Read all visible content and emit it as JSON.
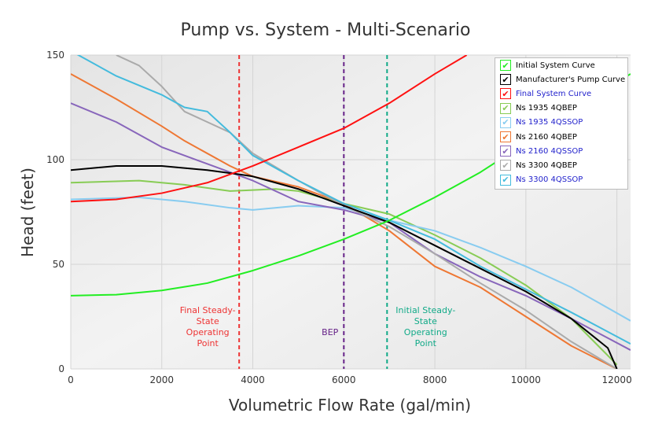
{
  "chart_data": {
    "type": "line",
    "title": "Pump vs. System - Multi-Scenario",
    "xlabel": "Volumetric Flow Rate (gal/min)",
    "ylabel": "Head (feet)",
    "xlim": [
      0,
      12300
    ],
    "ylim": [
      0,
      150
    ],
    "xticks": [
      0,
      2000,
      4000,
      6000,
      8000,
      10000,
      12000
    ],
    "yticks": [
      0,
      50,
      100,
      150
    ],
    "grid": true,
    "legend_position": "top-right",
    "series": [
      {
        "name": "Initial System Curve",
        "color": "#22ee22",
        "name_color": "#000000",
        "x": [
          0,
          1000,
          2000,
          3000,
          4000,
          5000,
          6000,
          7000,
          8000,
          9000,
          10000,
          11000,
          12000,
          12300
        ],
        "y": [
          35,
          35.5,
          37.5,
          41,
          47,
          54,
          62,
          71,
          82,
          94,
          108,
          122,
          137,
          141
        ]
      },
      {
        "name": "Manufacturer's Pump Curve",
        "color": "#000000",
        "name_color": "#000000",
        "x": [
          0,
          1000,
          2000,
          3000,
          3700,
          4000,
          5000,
          6000,
          7000,
          8000,
          9000,
          10000,
          11000,
          11800,
          12000
        ],
        "y": [
          95,
          97,
          97,
          95,
          93,
          92,
          86,
          78,
          70,
          59,
          48,
          37,
          24,
          10,
          0
        ]
      },
      {
        "name": "Final System Curve",
        "color": "#ff1111",
        "name_color": "#2222cc",
        "x": [
          0,
          1000,
          2000,
          3000,
          4000,
          5000,
          6000,
          7000,
          8000,
          8700
        ],
        "y": [
          80,
          81,
          84,
          89,
          97,
          106,
          115,
          127,
          141,
          150
        ]
      },
      {
        "name": "Ns 1935 4QBEP",
        "color": "#88cc55",
        "name_color": "#000000",
        "x": [
          0,
          1500,
          2500,
          3500,
          4000,
          4500,
          5000,
          6000,
          7000,
          8000,
          9000,
          10000,
          11000,
          12000
        ],
        "y": [
          89,
          90,
          88,
          85,
          85.5,
          86,
          85,
          79,
          74,
          64,
          53,
          40,
          24,
          2
        ]
      },
      {
        "name": "Ns 1935 4QSSOP",
        "color": "#88ccf0",
        "name_color": "#2222cc",
        "x": [
          0,
          1500,
          2500,
          3500,
          4000,
          5000,
          6000,
          7000,
          8000,
          9000,
          10000,
          11000,
          12300
        ],
        "y": [
          81,
          82,
          80,
          77,
          76,
          78,
          77,
          71,
          66,
          58,
          49,
          39,
          23
        ]
      },
      {
        "name": "Ns 2160 4QBEP",
        "color": "#ee7733",
        "name_color": "#000000",
        "x": [
          0,
          1000,
          2000,
          2500,
          3500,
          4000,
          5000,
          6000,
          7000,
          8000,
          9000,
          10000,
          11000,
          12000
        ],
        "y": [
          141,
          129,
          116,
          109,
          97,
          92,
          87,
          79,
          66,
          49,
          39,
          25,
          11,
          0
        ]
      },
      {
        "name": "Ns 2160 4QSSOP",
        "color": "#8866bb",
        "name_color": "#2222cc",
        "x": [
          0,
          1000,
          2000,
          3000,
          4000,
          5000,
          6000,
          7000,
          8000,
          9000,
          10000,
          11000,
          12300
        ],
        "y": [
          127,
          118,
          106,
          98,
          90,
          80,
          76,
          70,
          55,
          44,
          35,
          24,
          9
        ]
      },
      {
        "name": "Ns 3300 4QBEP",
        "color": "#aaaaaa",
        "name_color": "#000000",
        "x": [
          1000,
          1500,
          2000,
          2500,
          3000,
          3500,
          4000,
          5000,
          6000,
          7000,
          8000,
          9000,
          10000,
          11000,
          12000
        ],
        "y": [
          150,
          145,
          135,
          123,
          118,
          113,
          103,
          90,
          78,
          68,
          55,
          41,
          28,
          13,
          0
        ]
      },
      {
        "name": "Ns 3300 4QSSOP",
        "color": "#44bbdd",
        "name_color": "#2222cc",
        "x": [
          0,
          1000,
          2000,
          2500,
          3000,
          3500,
          4000,
          5000,
          6000,
          7000,
          8000,
          9000,
          10000,
          11000,
          12300
        ],
        "y": [
          152,
          140,
          131,
          125,
          123,
          113,
          102,
          90,
          79,
          71,
          62,
          49,
          38,
          27,
          12
        ]
      }
    ],
    "annotations": [
      {
        "x": 3700,
        "color": "#ee3333",
        "lines": [
          "Final Steady-",
          "State",
          "Operating",
          "Point"
        ]
      },
      {
        "x": 6000,
        "color": "#662288",
        "lines": [
          "BEP"
        ]
      },
      {
        "x": 6950,
        "color": "#11aa88",
        "lines": [
          "Initial Steady-",
          "State",
          "Operating",
          "Point"
        ]
      }
    ]
  }
}
